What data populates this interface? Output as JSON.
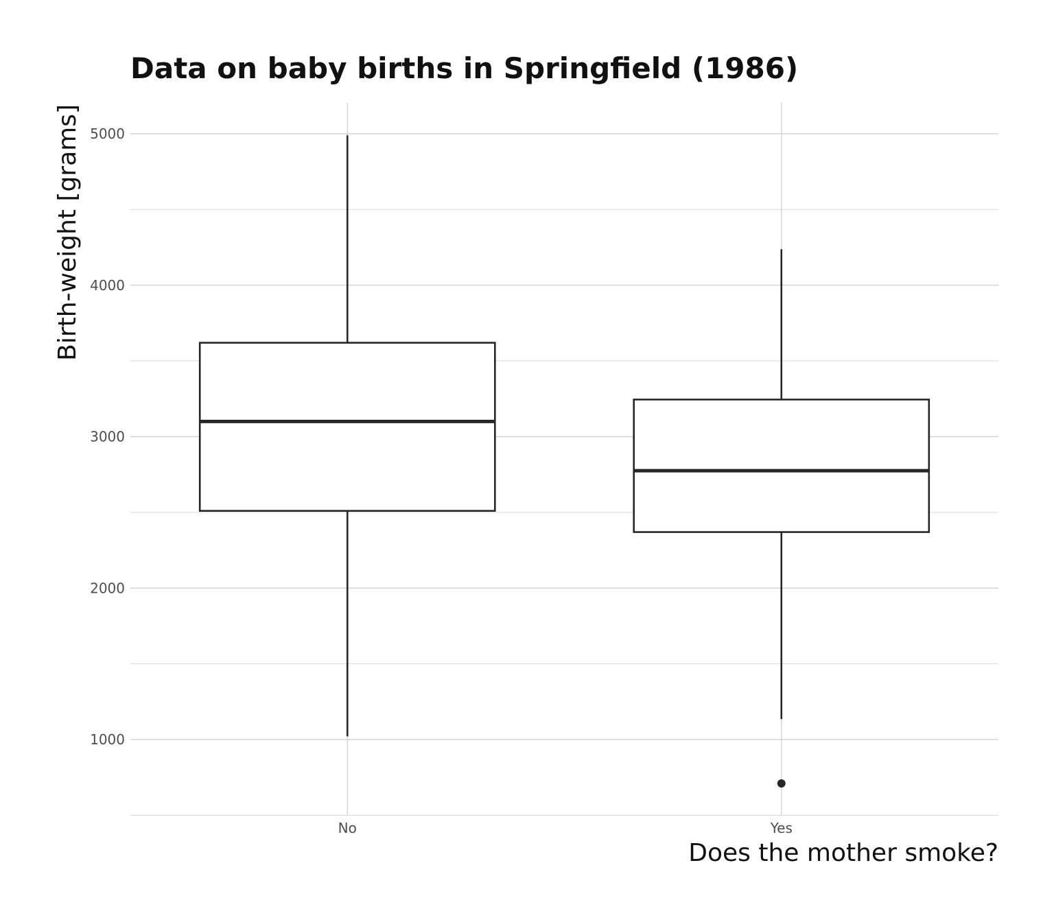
{
  "chart_data": {
    "type": "boxplot",
    "title": "Data on baby births in Springfield (1986)",
    "xlabel": "Does the mother smoke?",
    "ylabel": "Birth-weight [grams]",
    "categories": [
      "No",
      "Yes"
    ],
    "ylim": [
      500,
      5200
    ],
    "yticks": [
      1000,
      2000,
      3000,
      4000,
      5000
    ],
    "yticks_minor": [
      500,
      1500,
      2500,
      3500,
      4500
    ],
    "grid": true,
    "boxes": [
      {
        "category": "No",
        "whisker_low": 1021,
        "q1": 2510,
        "median": 3100,
        "q3": 3620,
        "whisker_high": 4990,
        "outliers": []
      },
      {
        "category": "Yes",
        "whisker_low": 1135,
        "q1": 2370,
        "median": 2775,
        "q3": 3245,
        "whisker_high": 4238,
        "outliers": [
          710
        ]
      }
    ],
    "colors": {
      "box_line": "#262626",
      "box_fill": "#ffffff",
      "grid": "#cccccc"
    }
  }
}
